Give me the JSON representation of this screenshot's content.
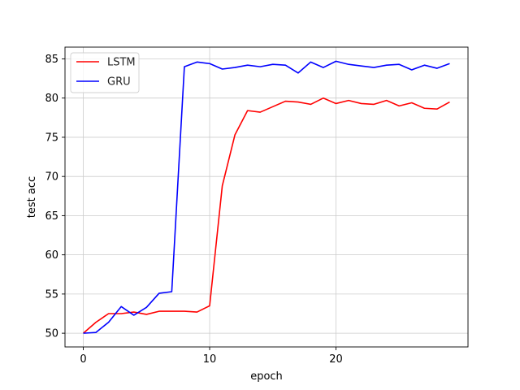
{
  "chart_data": {
    "type": "line",
    "title": "",
    "xlabel": "epoch",
    "ylabel": "test acc",
    "xlim": [
      -1.45,
      30.45
    ],
    "ylim": [
      48.25,
      86.5
    ],
    "xticks": [
      0,
      10,
      20
    ],
    "yticks": [
      50,
      55,
      60,
      65,
      70,
      75,
      80,
      85
    ],
    "grid": true,
    "legend": "top-left",
    "x": [
      0,
      1,
      2,
      3,
      4,
      5,
      6,
      7,
      8,
      9,
      10,
      11,
      12,
      13,
      14,
      15,
      16,
      17,
      18,
      19,
      20,
      21,
      22,
      23,
      24,
      25,
      26,
      27,
      28,
      29
    ],
    "series": [
      {
        "name": "LSTM",
        "color": "#ff0000",
        "values": [
          50.0,
          51.4,
          52.5,
          52.5,
          52.7,
          52.4,
          52.8,
          52.8,
          52.8,
          52.7,
          53.5,
          68.8,
          75.3,
          78.4,
          78.2,
          78.9,
          79.6,
          79.5,
          79.2,
          80.0,
          79.3,
          79.7,
          79.3,
          79.2,
          79.7,
          79.0,
          79.4,
          78.7,
          78.6,
          79.5
        ]
      },
      {
        "name": "GRU",
        "color": "#0000ff",
        "values": [
          50.0,
          50.1,
          51.4,
          53.4,
          52.3,
          53.3,
          55.1,
          55.3,
          84.0,
          84.6,
          84.4,
          83.7,
          83.9,
          84.2,
          84.0,
          84.3,
          84.2,
          83.2,
          84.6,
          83.9,
          84.7,
          84.3,
          84.1,
          83.9,
          84.2,
          84.3,
          83.6,
          84.2,
          83.8,
          84.4
        ]
      }
    ]
  }
}
